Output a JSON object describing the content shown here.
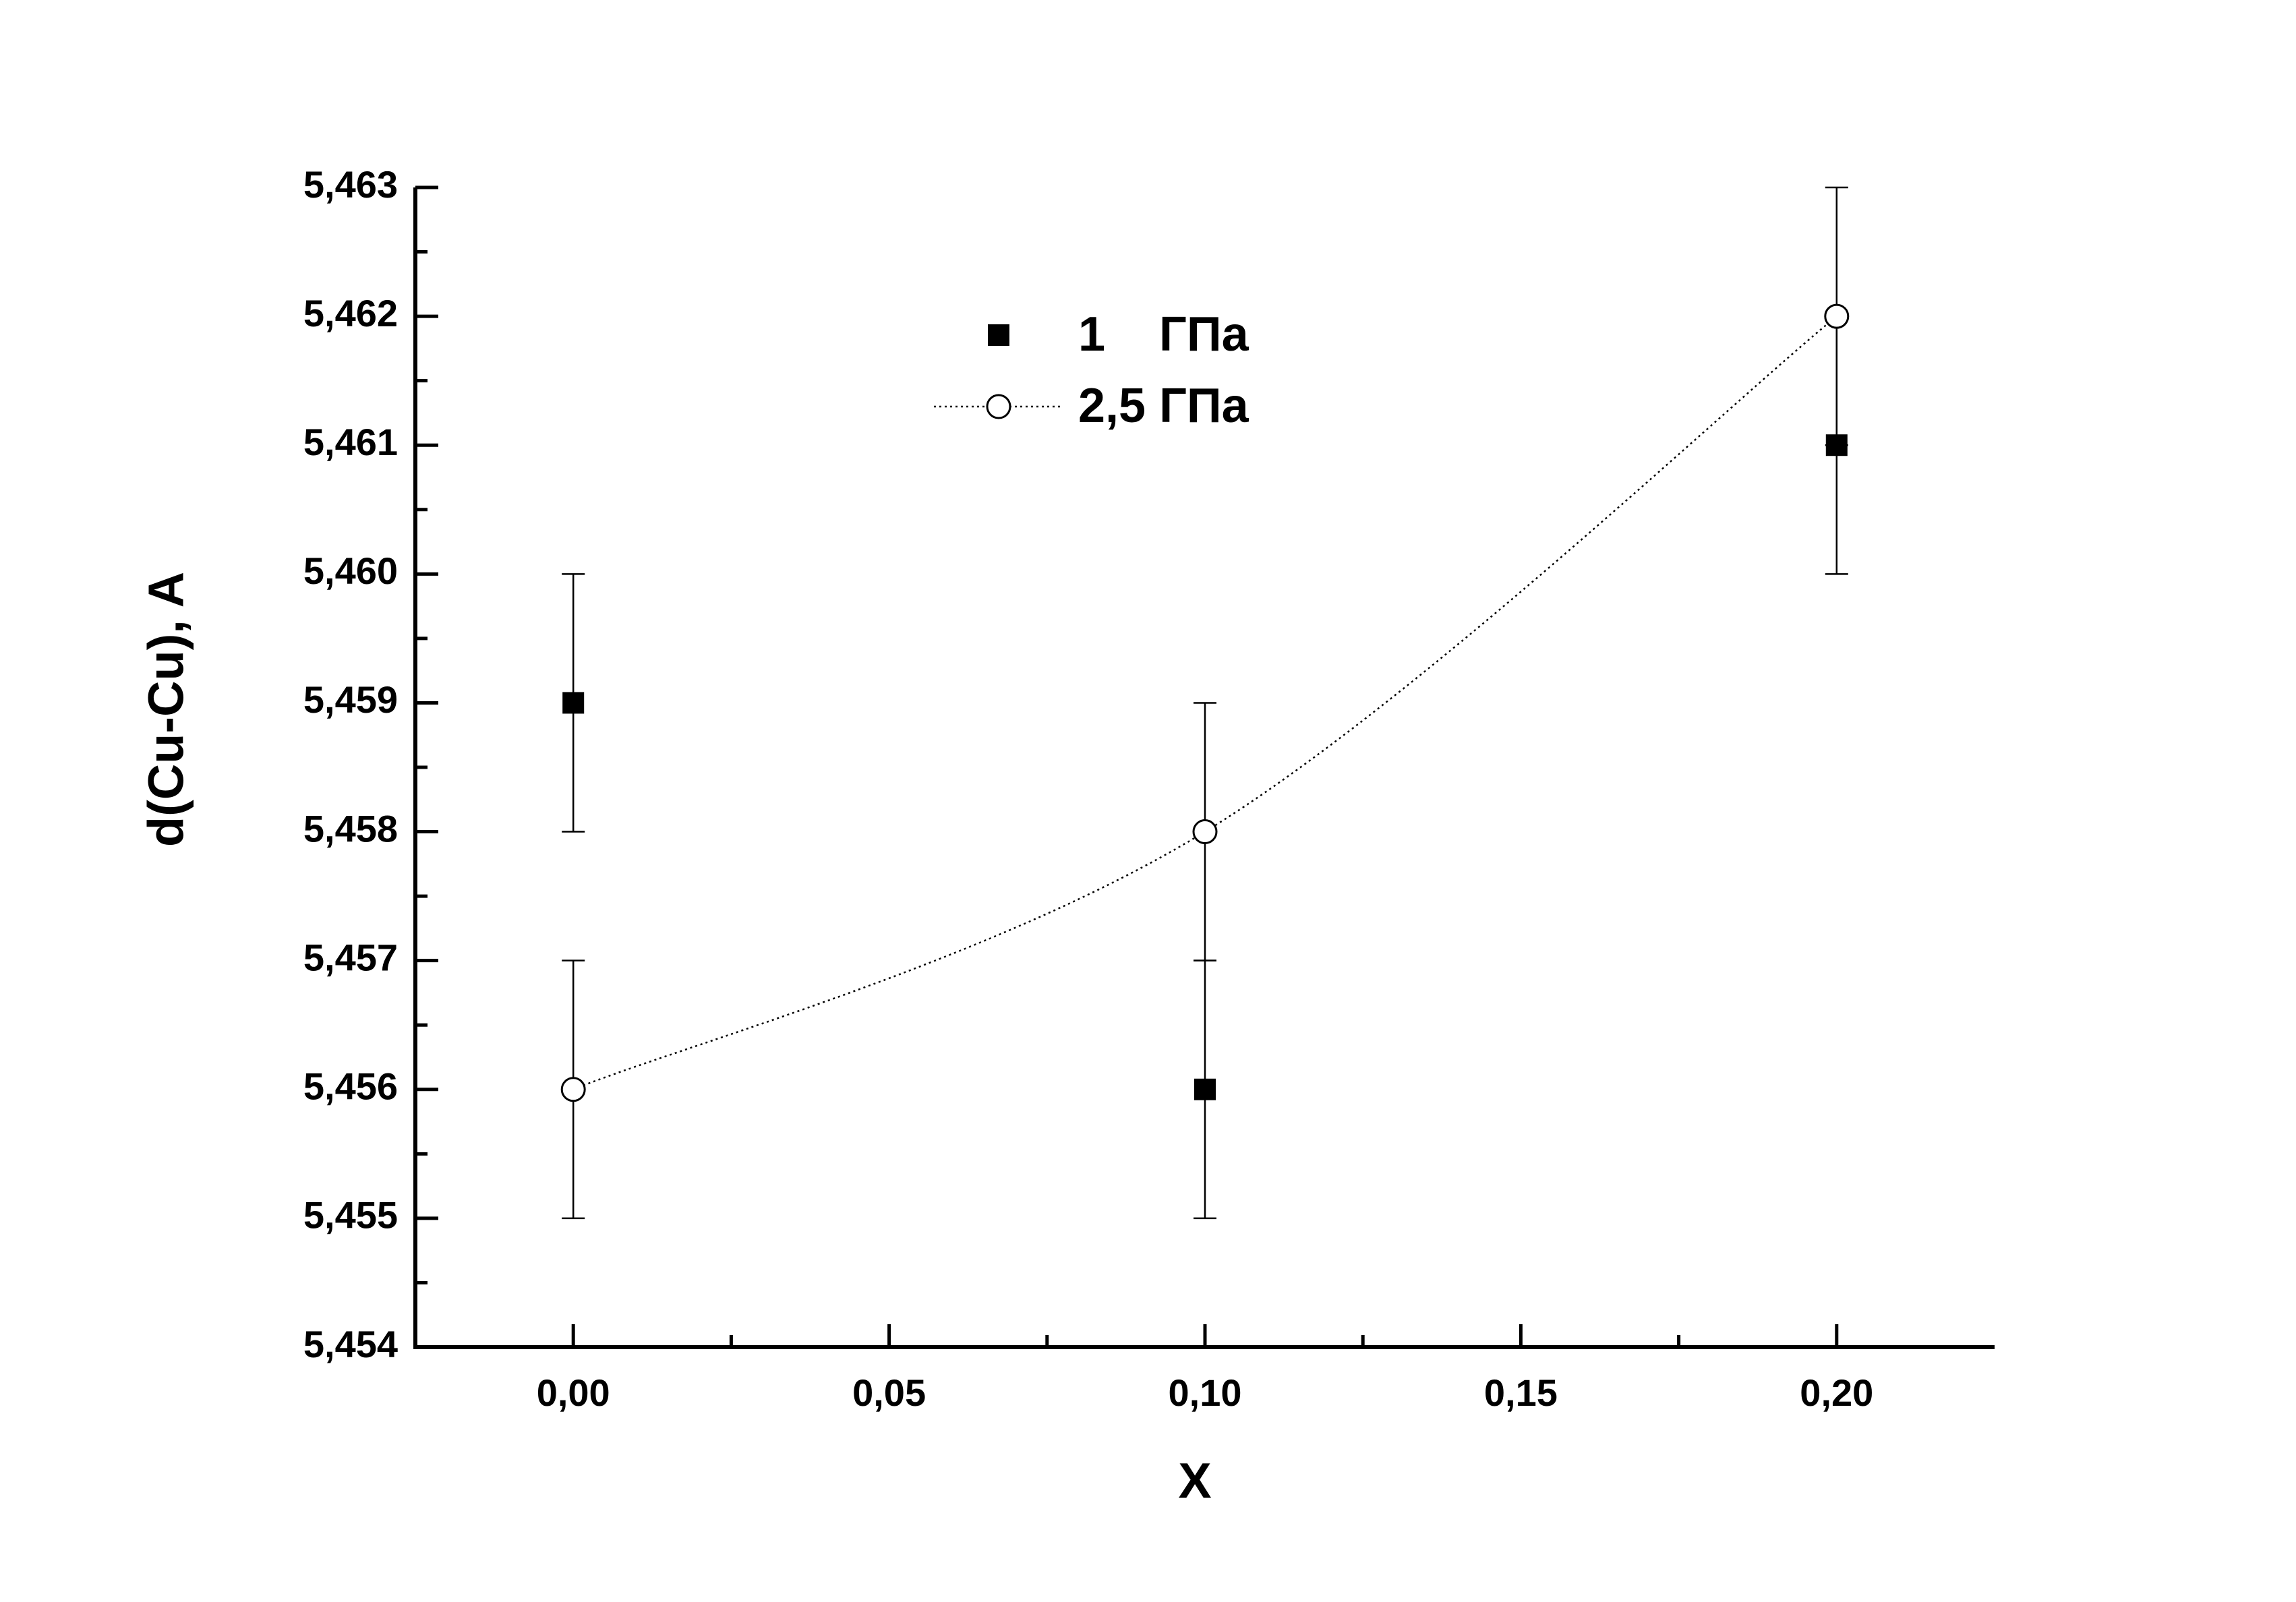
{
  "chart_data": {
    "type": "scatter",
    "x_label": "X",
    "y_label": "d(Cu-Cu), A",
    "xlim": [
      -0.025,
      0.225
    ],
    "xticks": [
      {
        "value": 0,
        "label": "0,00"
      },
      {
        "value": 0.05,
        "label": "0,05"
      },
      {
        "value": 0.1,
        "label": "0,10"
      },
      {
        "value": 0.15,
        "label": "0,15"
      },
      {
        "value": 0.2,
        "label": "0,20"
      }
    ],
    "xminorticks": [
      0.025,
      0.075,
      0.125,
      0.175
    ],
    "ylim": [
      5.454,
      5.463
    ],
    "yticks": [
      {
        "value": 5.454,
        "label": "5,454"
      },
      {
        "value": 5.455,
        "label": "5,455"
      },
      {
        "value": 5.456,
        "label": "5,456"
      },
      {
        "value": 5.457,
        "label": "5,457"
      },
      {
        "value": 5.458,
        "label": "5,458"
      },
      {
        "value": 5.459,
        "label": "5,459"
      },
      {
        "value": 5.46,
        "label": "5,460"
      },
      {
        "value": 5.461,
        "label": "5,461"
      },
      {
        "value": 5.462,
        "label": "5,462"
      },
      {
        "value": 5.463,
        "label": "5,463"
      }
    ],
    "yminorticks": [
      5.4545,
      5.4555,
      5.4565,
      5.4575,
      5.4585,
      5.4595,
      5.4605,
      5.4615,
      5.4625
    ],
    "grid": false,
    "legend": "top",
    "series": [
      {
        "name": "1    ГПа",
        "color": "#000000",
        "marker": "square",
        "line": false,
        "x": [
          0,
          0.1,
          0.2
        ],
        "values": [
          5.459,
          5.456,
          5.461
        ],
        "errors": [
          0.001,
          0.001,
          0.001
        ]
      },
      {
        "name": "2,5 ГПа",
        "color": "#000000",
        "marker": "circle",
        "line": true,
        "x": [
          0,
          0.1,
          0.2
        ],
        "values": [
          5.456,
          5.458,
          5.462
        ],
        "errors": [
          0.001,
          0.001,
          0.001
        ]
      }
    ]
  }
}
